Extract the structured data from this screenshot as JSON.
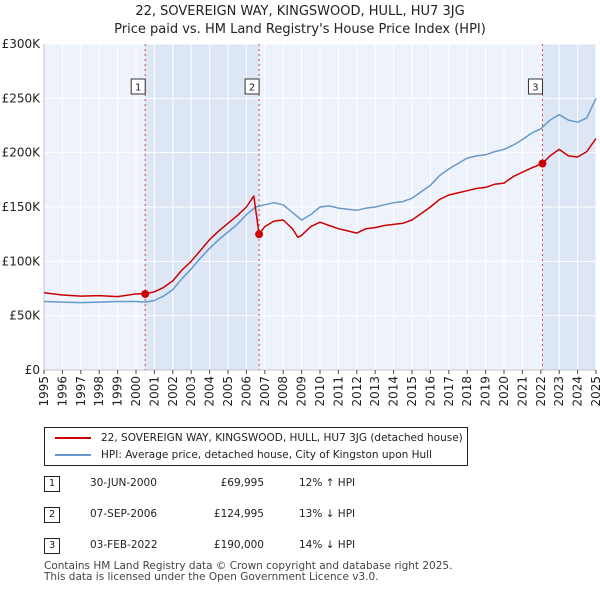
{
  "chart_data": {
    "type": "line",
    "title": "22, SOVEREIGN WAY, KINGSWOOD, HULL, HU7 3JG",
    "subtitle": "Price paid vs. HM Land Registry's House Price Index (HPI)",
    "xlim": [
      1995.0,
      2025.0
    ],
    "ylim": [
      0,
      300000
    ],
    "y_ticks": [
      {
        "value": 0,
        "label": "£0"
      },
      {
        "value": 50000,
        "label": "£50K"
      },
      {
        "value": 100000,
        "label": "£100K"
      },
      {
        "value": 150000,
        "label": "£150K"
      },
      {
        "value": 200000,
        "label": "£200K"
      },
      {
        "value": 250000,
        "label": "£250K"
      },
      {
        "value": 300000,
        "label": "£300K"
      }
    ],
    "x_ticks": [
      "1995",
      "1996",
      "1997",
      "1998",
      "1999",
      "2000",
      "2001",
      "2002",
      "2003",
      "2004",
      "2005",
      "2006",
      "2007",
      "2008",
      "2009",
      "2010",
      "2011",
      "2012",
      "2013",
      "2014",
      "2015",
      "2016",
      "2017",
      "2018",
      "2019",
      "2020",
      "2021",
      "2022",
      "2023",
      "2024",
      "2025"
    ],
    "grid": true,
    "series": [
      {
        "name": "22, SOVEREIGN WAY, KINGSWOOD, HULL, HU7 3JG (detached house)",
        "color": "#cc0000",
        "x": [
          1995.0,
          1996.0,
          1997.0,
          1998.0,
          1999.0,
          2000.0,
          2000.5,
          2001.0,
          2001.5,
          2002.0,
          2002.5,
          2003.0,
          2003.5,
          2004.0,
          2004.5,
          2005.0,
          2005.5,
          2006.0,
          2006.4,
          2006.69,
          2007.0,
          2007.5,
          2008.0,
          2008.5,
          2008.8,
          2009.0,
          2009.5,
          2010.0,
          2010.5,
          2011.0,
          2011.5,
          2012.0,
          2012.5,
          2013.0,
          2013.5,
          2014.0,
          2014.5,
          2015.0,
          2015.5,
          2016.0,
          2016.5,
          2017.0,
          2017.5,
          2018.0,
          2018.5,
          2019.0,
          2019.5,
          2020.0,
          2020.5,
          2021.0,
          2021.5,
          2022.09,
          2022.5,
          2023.0,
          2023.5,
          2024.0,
          2024.5,
          2025.0
        ],
        "values": [
          71000,
          69000,
          68000,
          68500,
          67500,
          70000,
          69995,
          72000,
          76000,
          82000,
          92000,
          100000,
          110000,
          120000,
          128000,
          135000,
          142000,
          150000,
          160000,
          124995,
          132000,
          137000,
          138000,
          130000,
          122000,
          124000,
          132000,
          136000,
          133000,
          130000,
          128000,
          126000,
          130000,
          131000,
          133000,
          134000,
          135000,
          138000,
          144000,
          150000,
          157000,
          161000,
          163000,
          165000,
          167000,
          168000,
          171000,
          172000,
          178000,
          182000,
          186000,
          190000,
          197000,
          203000,
          197000,
          196000,
          201000,
          213000
        ]
      },
      {
        "name": "HPI: Average price, detached house, City of Kingston upon Hull",
        "color": "#6699cc",
        "x": [
          1995.0,
          1996.0,
          1997.0,
          1998.0,
          1999.0,
          2000.0,
          2000.5,
          2001.0,
          2001.5,
          2002.0,
          2002.5,
          2003.0,
          2003.5,
          2004.0,
          2004.5,
          2005.0,
          2005.5,
          2006.0,
          2006.5,
          2007.0,
          2007.5,
          2008.0,
          2008.5,
          2009.0,
          2009.5,
          2010.0,
          2010.5,
          2011.0,
          2011.5,
          2012.0,
          2012.5,
          2013.0,
          2013.5,
          2014.0,
          2014.5,
          2015.0,
          2015.5,
          2016.0,
          2016.5,
          2017.0,
          2017.5,
          2018.0,
          2018.5,
          2019.0,
          2019.5,
          2020.0,
          2020.5,
          2021.0,
          2021.5,
          2022.0,
          2022.5,
          2023.0,
          2023.5,
          2024.0,
          2024.5,
          2025.0
        ],
        "values": [
          63000,
          62500,
          62000,
          62500,
          63000,
          63000,
          62500,
          64000,
          68000,
          74000,
          84000,
          93000,
          103000,
          112000,
          120000,
          127000,
          134000,
          143000,
          150000,
          152000,
          154000,
          152000,
          145000,
          138000,
          143000,
          150000,
          151000,
          149000,
          148000,
          147000,
          149000,
          150000,
          152000,
          154000,
          155000,
          158000,
          164000,
          170000,
          179000,
          185000,
          190000,
          195000,
          197000,
          198000,
          201000,
          203000,
          207000,
          212000,
          218000,
          222000,
          230000,
          235000,
          230000,
          228000,
          232000,
          250000
        ]
      }
    ],
    "sales": [
      {
        "marker": "1",
        "x": 2000.5,
        "value": 69995,
        "date": "30-JUN-2000",
        "price": "£69,995",
        "hpi": "12% ↑ HPI"
      },
      {
        "marker": "2",
        "x": 2006.69,
        "value": 124995,
        "date": "07-SEP-2006",
        "price": "£124,995",
        "hpi": "13% ↓ HPI"
      },
      {
        "marker": "3",
        "x": 2022.09,
        "value": 190000,
        "date": "03-FEB-2022",
        "price": "£190,000",
        "hpi": "14% ↓ HPI"
      }
    ],
    "legend": {
      "placement": "bottom",
      "entries": [
        "22, SOVEREIGN WAY, KINGSWOOD, HULL, HU7 3JG (detached house)",
        "HPI: Average price, detached house, City of Kingston upon Hull"
      ]
    },
    "colors": {
      "plot_bg": "#eef3fb",
      "shade": "#dde6f5",
      "grid": "#ffffff",
      "sale_line": "#cc0000",
      "hpi_line": "#6699cc",
      "marker_border": "#333333"
    }
  },
  "footer": {
    "line1": "Contains HM Land Registry data © Crown copyright and database right 2025.",
    "line2": "This data is licensed under the Open Government Licence v3.0."
  }
}
